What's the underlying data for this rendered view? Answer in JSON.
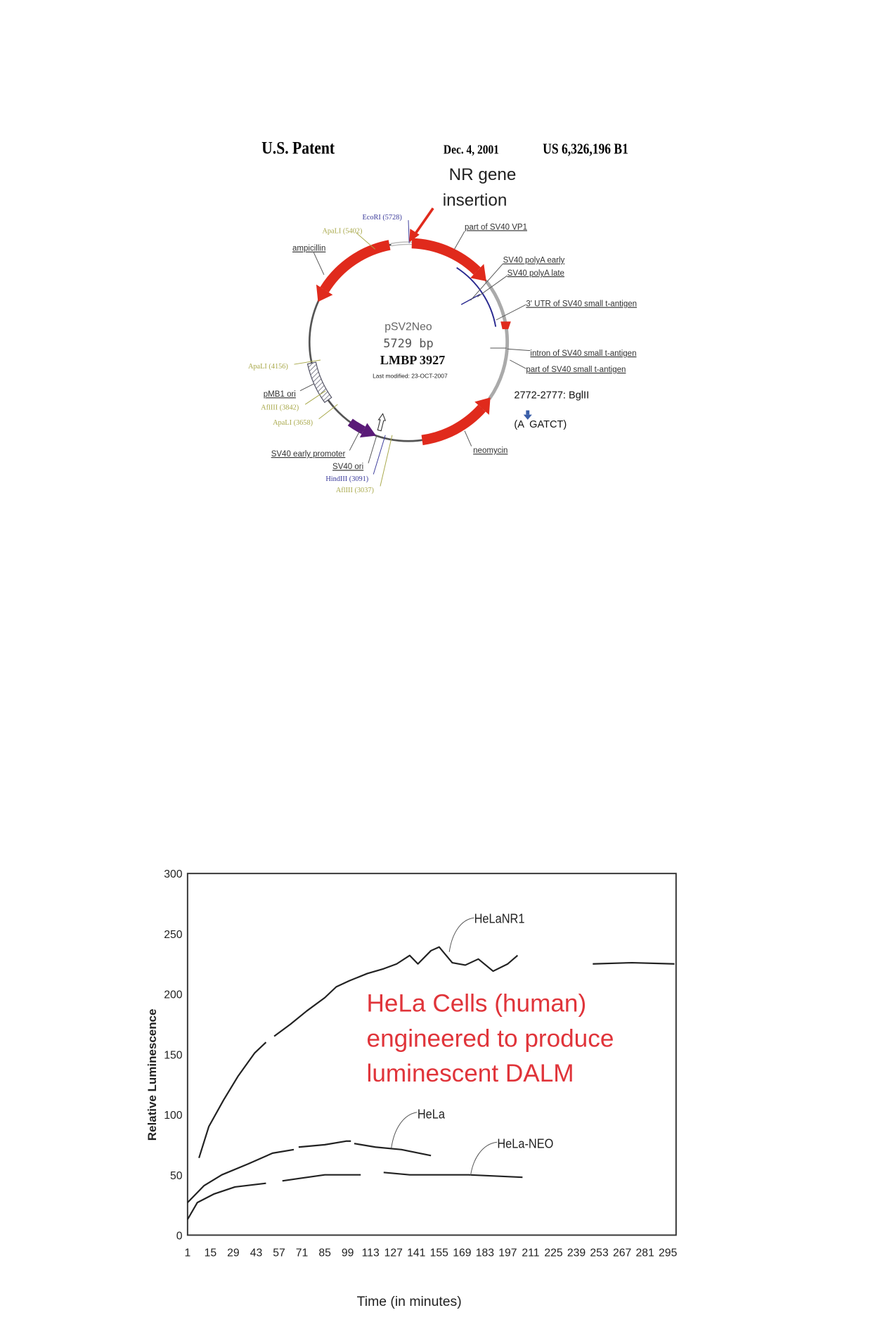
{
  "header": {
    "left": "U.S. Patent",
    "date": "Dec. 4, 2001",
    "patent_no": "US 6,326,196 B1"
  },
  "insertion_note": {
    "line1": "NR gene",
    "line2": "insertion"
  },
  "plasmid": {
    "name": "pSV2Neo",
    "size": "5729 bp",
    "id": "LMBP 3927",
    "modified": "Last modified: 23-OCT-2007",
    "labels": {
      "ecori": "EcoRI (5728)",
      "apali_5402": "ApaLI (5402)",
      "ampicillin": "ampicillin",
      "vp1": "part of SV40 VP1",
      "polya_early": "SV40 polyA early",
      "polya_late": "SV40 polyA late",
      "utr": "3' UTR of SV40 small t-antigen",
      "intron": "intron of SV40 small t-antigen",
      "part_t": "part of SV40 small t-antigen",
      "neomycin": "neomycin",
      "early_promoter": "SV40 early promoter",
      "ori": "SV40 ori",
      "hindiii": "HindIII (3091)",
      "afliii_3037": "AflIII (3037)",
      "apali_4156": "ApaLI (4156)",
      "pmb1": "pMB1 ori",
      "afliii_3842": "AflIII (3842)",
      "apali_3658": "ApaLI (3658)"
    }
  },
  "bglii": {
    "range": "2772-2777: BglII",
    "site": "(A  GATCT)"
  },
  "colors": {
    "feature_red": "#e02a1c",
    "promoter_purple": "#5a1a78",
    "site_blue": "#3a3a9a",
    "site_olive": "#a8a84a",
    "annotation_red": "#e0343a",
    "arrow_blue": "#3a5ea8"
  },
  "chart_data": {
    "type": "line",
    "xlabel": "Time (in minutes)",
    "ylabel": "Relative Luminescence",
    "annotation": [
      "HeLa Cells (human)",
      "engineered to produce",
      "luminescent DALM"
    ],
    "xlim": [
      1,
      300
    ],
    "ylim": [
      0,
      300
    ],
    "x_ticks": [
      1,
      15,
      29,
      43,
      57,
      71,
      85,
      99,
      113,
      127,
      141,
      155,
      169,
      183,
      197,
      211,
      225,
      239,
      253,
      267,
      281,
      295
    ],
    "y_ticks": [
      0,
      50,
      100,
      150,
      200,
      250,
      300
    ],
    "grid": false,
    "series": [
      {
        "name": "HeLaNR1",
        "points": [
          [
            5,
            45
          ],
          null,
          [
            8,
            64
          ],
          [
            14,
            90
          ],
          [
            23,
            112
          ],
          [
            32,
            132
          ],
          [
            42,
            151
          ],
          [
            49,
            160
          ],
          null,
          [
            54,
            165
          ],
          [
            64,
            175
          ],
          [
            74,
            186
          ],
          [
            85,
            197
          ],
          [
            92,
            206
          ],
          [
            100,
            211
          ],
          [
            111,
            217
          ],
          [
            121,
            221
          ],
          [
            129,
            225
          ],
          [
            137,
            232
          ],
          [
            142,
            225
          ],
          [
            150,
            236
          ],
          [
            155,
            239
          ],
          [
            163,
            226
          ],
          [
            171,
            224
          ],
          [
            179,
            229
          ],
          [
            188,
            219
          ],
          [
            197,
            225
          ],
          [
            203,
            232
          ],
          null,
          [
            249,
            225
          ],
          [
            273,
            226
          ],
          [
            299,
            225
          ]
        ]
      },
      {
        "name": "HeLa",
        "points": [
          [
            1,
            27
          ],
          [
            11,
            41
          ],
          [
            22,
            50
          ],
          [
            38,
            59
          ],
          [
            53,
            68
          ],
          [
            66,
            71
          ],
          null,
          [
            69,
            73
          ],
          [
            85,
            75
          ],
          [
            98,
            78
          ],
          [
            101,
            78
          ],
          null,
          [
            103,
            76
          ],
          [
            116,
            73
          ],
          [
            132,
            71
          ],
          [
            150,
            66
          ]
        ]
      },
      {
        "name": "HeLa-NEO",
        "points": [
          [
            1,
            13
          ],
          [
            7,
            27
          ],
          [
            17,
            34
          ],
          [
            30,
            40
          ],
          [
            49,
            43
          ],
          null,
          [
            59,
            45
          ],
          [
            69,
            47
          ],
          [
            85,
            50
          ],
          [
            107,
            50
          ],
          null,
          [
            121,
            52
          ],
          [
            137,
            50
          ],
          [
            173,
            50
          ],
          [
            206,
            48
          ]
        ]
      }
    ]
  }
}
